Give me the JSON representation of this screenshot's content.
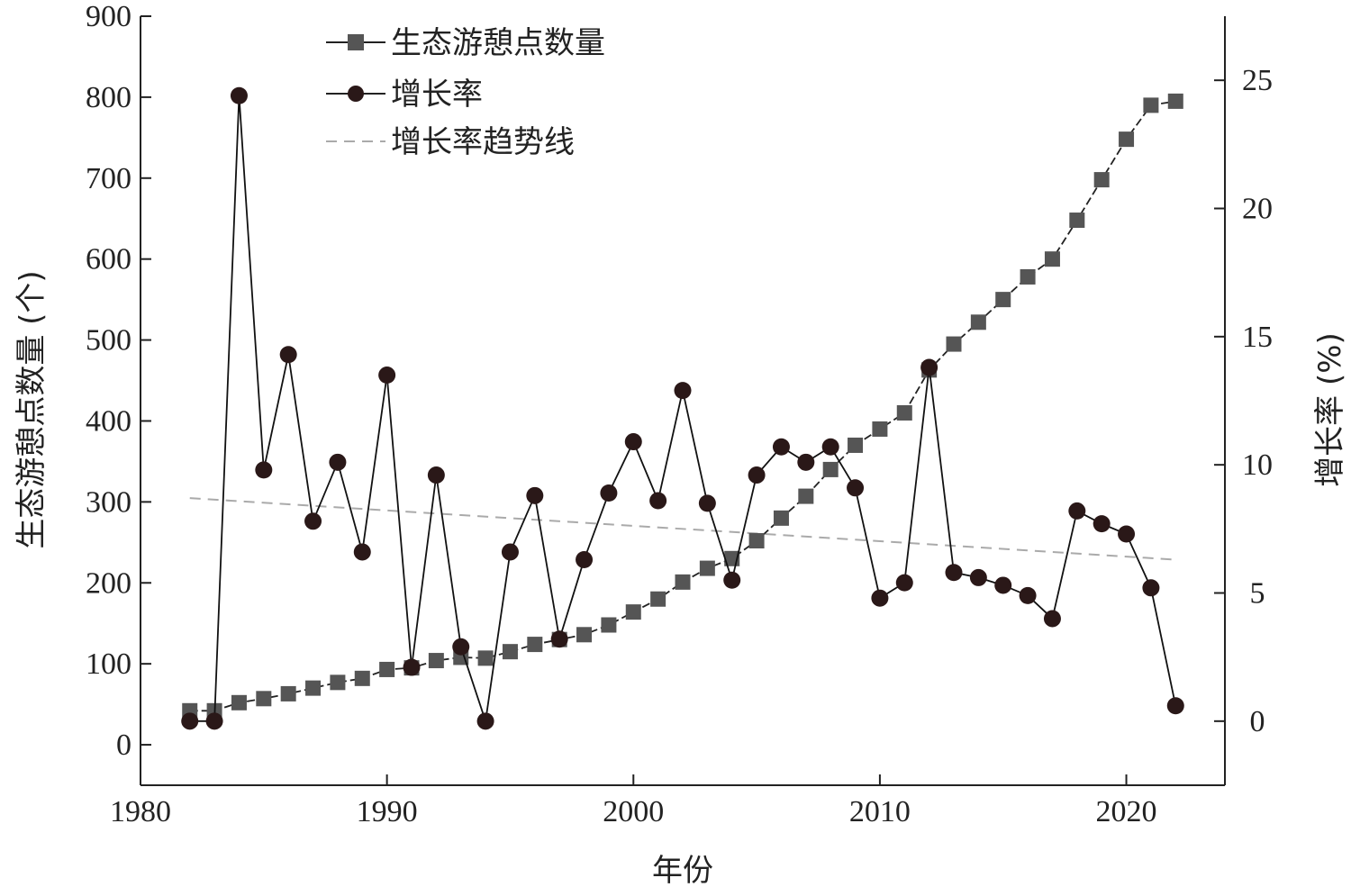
{
  "chart_data": {
    "type": "line",
    "xlabel": "年份",
    "ylabel_left": "生态游憩点数量 (个)",
    "ylabel_right": "增长率 (%)",
    "xlim": [
      1980,
      2024
    ],
    "ylim_left": [
      -50,
      900
    ],
    "ylim_right": [
      -2.5,
      27.5
    ],
    "x_ticks": [
      1980,
      1990,
      2000,
      2010,
      2020
    ],
    "y_left_ticks": [
      0,
      100,
      200,
      300,
      400,
      500,
      600,
      700,
      800,
      900
    ],
    "y_right_ticks": [
      0,
      5,
      10,
      15,
      20,
      25
    ],
    "x": [
      1982,
      1983,
      1984,
      1985,
      1986,
      1987,
      1988,
      1989,
      1990,
      1991,
      1992,
      1993,
      1994,
      1995,
      1996,
      1997,
      1998,
      1999,
      2000,
      2001,
      2002,
      2003,
      2004,
      2005,
      2006,
      2007,
      2008,
      2009,
      2010,
      2011,
      2012,
      2013,
      2014,
      2015,
      2016,
      2017,
      2018,
      2019,
      2020,
      2021,
      2022
    ],
    "series": [
      {
        "name": "生态游憩点数量",
        "axis": "left",
        "marker": "square",
        "color": "#555555",
        "values": [
          42,
          42,
          52,
          57,
          63,
          70,
          77,
          82,
          93,
          95,
          104,
          108,
          107,
          115,
          124,
          130,
          136,
          148,
          164,
          180,
          201,
          218,
          230,
          252,
          280,
          307,
          340,
          370,
          390,
          410,
          463,
          495,
          522,
          550,
          578,
          600,
          648,
          698,
          748,
          790,
          795
        ]
      },
      {
        "name": "增长率",
        "axis": "right",
        "marker": "circle",
        "color": "#2a1818",
        "values": [
          0,
          0,
          24.4,
          9.8,
          14.3,
          7.8,
          10.1,
          6.6,
          13.5,
          2.1,
          9.6,
          2.9,
          0,
          6.6,
          8.8,
          3.2,
          6.3,
          8.9,
          10.9,
          8.6,
          12.9,
          8.5,
          5.5,
          9.6,
          10.7,
          10.1,
          10.7,
          9.1,
          4.8,
          5.4,
          13.8,
          5.8,
          5.6,
          5.3,
          4.9,
          4.0,
          8.2,
          7.7,
          7.3,
          5.2,
          0.6
        ]
      }
    ],
    "trendline": {
      "name": "增长率趋势线",
      "axis": "right",
      "color": "#aaaaaa",
      "x": [
        1982,
        2022
      ],
      "values": [
        8.7,
        6.3
      ]
    },
    "legend_position": "top-left"
  }
}
